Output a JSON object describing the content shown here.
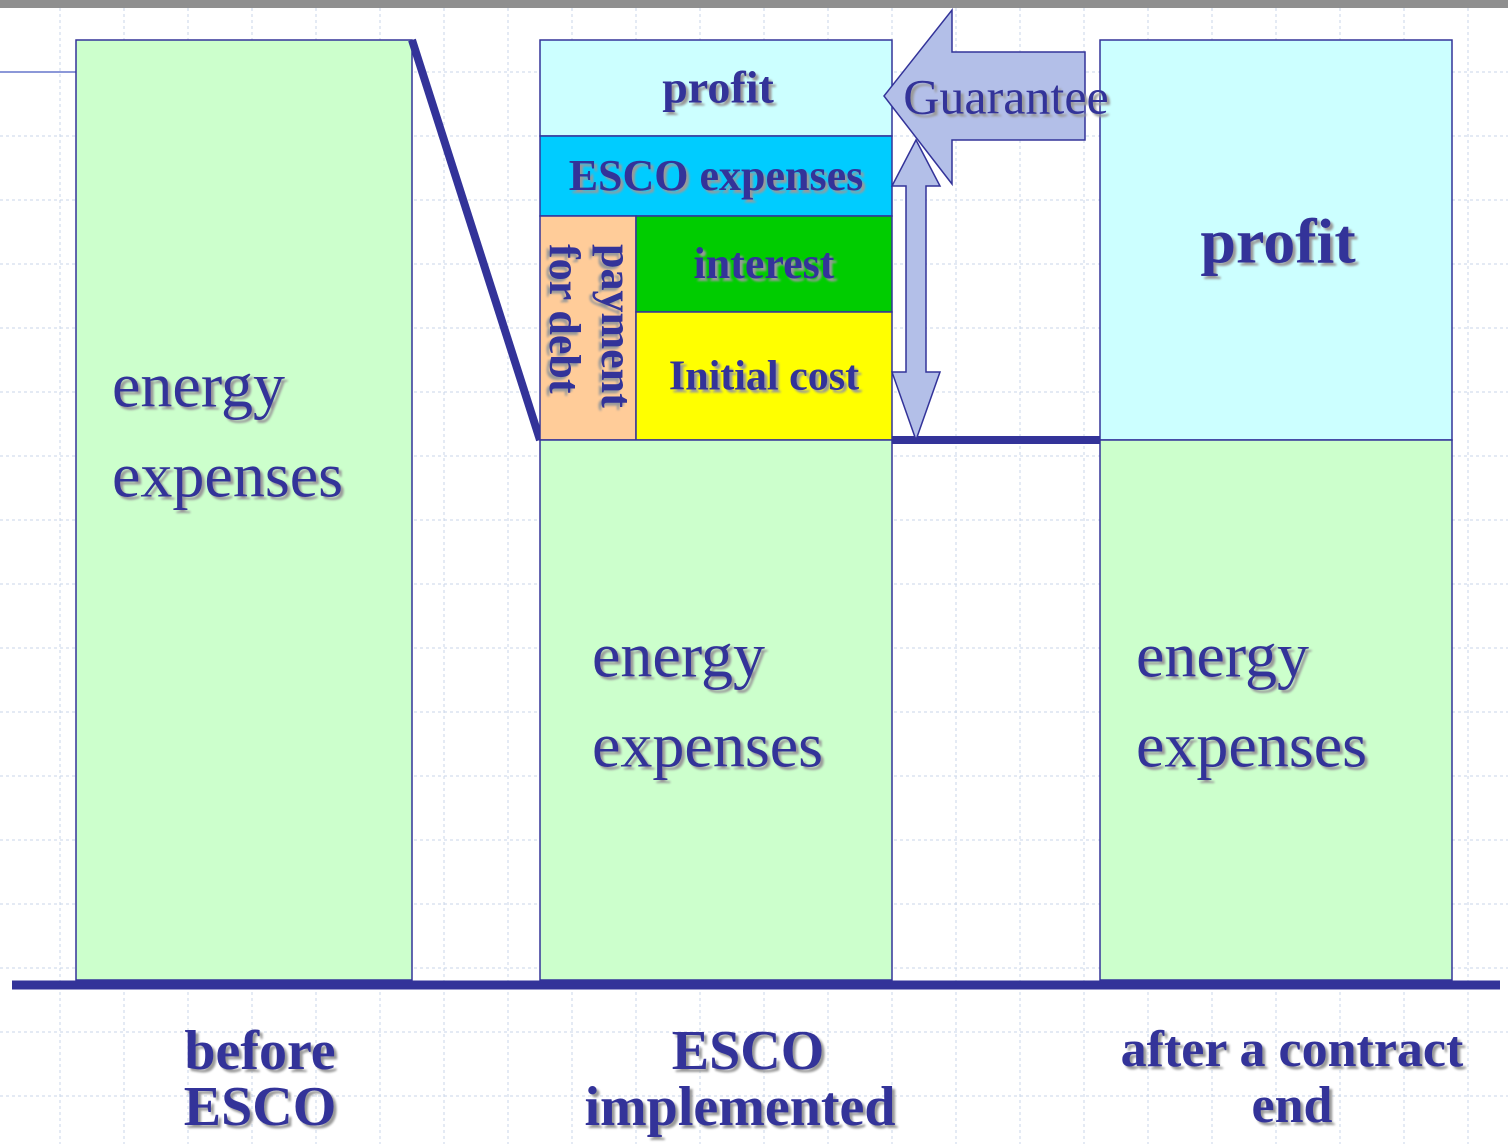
{
  "columns": [
    {
      "label": [
        "before",
        "ESCO"
      ],
      "segments": {
        "energy": [
          "energy",
          "expenses"
        ]
      }
    },
    {
      "label": [
        "ESCO",
        "implemented"
      ],
      "segments": {
        "profit": "profit",
        "esco_expenses": "ESCO expenses",
        "payment": [
          "payment",
          "for debt"
        ],
        "interest": "interest",
        "initial_cost": "Initial cost",
        "energy": [
          "energy",
          "expenses"
        ]
      }
    },
    {
      "label": [
        "after a contract",
        "end"
      ],
      "segments": {
        "profit": "profit",
        "energy": [
          "energy",
          "expenses"
        ]
      }
    }
  ],
  "guarantee": "Guarantee"
}
